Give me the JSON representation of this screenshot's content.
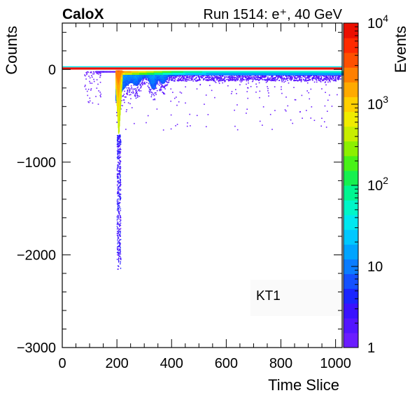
{
  "chart_data": {
    "type": "heatmap",
    "experiment": "CaloX",
    "title": "Run 1514: e⁺, 40 GeV",
    "xlabel": "Time Slice",
    "ylabel": "Counts",
    "zlabel": "Events",
    "annotation": "KT1",
    "xlim": [
      0,
      1024
    ],
    "ylim": [
      -3000,
      500
    ],
    "zlim": [
      1,
      10000
    ],
    "zscale": "log",
    "x_ticks": [
      0,
      200,
      400,
      600,
      800,
      1000
    ],
    "x_tick_labels": [
      "0",
      "200",
      "400",
      "600",
      "800",
      "1000"
    ],
    "y_ticks": [
      0,
      -1000,
      -2000,
      -3000
    ],
    "y_tick_labels": [
      "0",
      "−1000",
      "−2000",
      "−3000"
    ],
    "z_ticks": [
      {
        "value": 1,
        "base": "1",
        "exp": ""
      },
      {
        "value": 10,
        "base": "10",
        "exp": ""
      },
      {
        "value": 100,
        "base": "10",
        "exp": "2"
      },
      {
        "value": 1000,
        "base": "10",
        "exp": "3"
      },
      {
        "value": 10000,
        "base": "10",
        "exp": "4"
      }
    ],
    "pedestal": {
      "x_range": [
        0,
        1024
      ],
      "y": 10,
      "events": 8000
    },
    "pulse": {
      "onset_x": 195,
      "peak_x": 205,
      "peak_counts": -2150,
      "core_counts_at_peak": -700,
      "secondary_dips": [
        {
          "x": 270,
          "counts": -120
        },
        {
          "x": 330,
          "counts": -250
        },
        {
          "x": 365,
          "counts": -150
        }
      ],
      "tail_counts_at_1000": -80,
      "sparse_points_to_counts": -550
    },
    "palette": [
      "#6b1dff",
      "#5315ff",
      "#3a12ff",
      "#1a25ff",
      "#1451ff",
      "#0a7cff",
      "#00a4ff",
      "#00c8ff",
      "#00e8ef",
      "#00f6c8",
      "#00f690",
      "#16f04f",
      "#48f217",
      "#8cf000",
      "#c8ee00",
      "#f0ec00",
      "#ffd000",
      "#ffaa00",
      "#ff8000",
      "#ff5000",
      "#ff2a00",
      "#ec0f00"
    ]
  }
}
